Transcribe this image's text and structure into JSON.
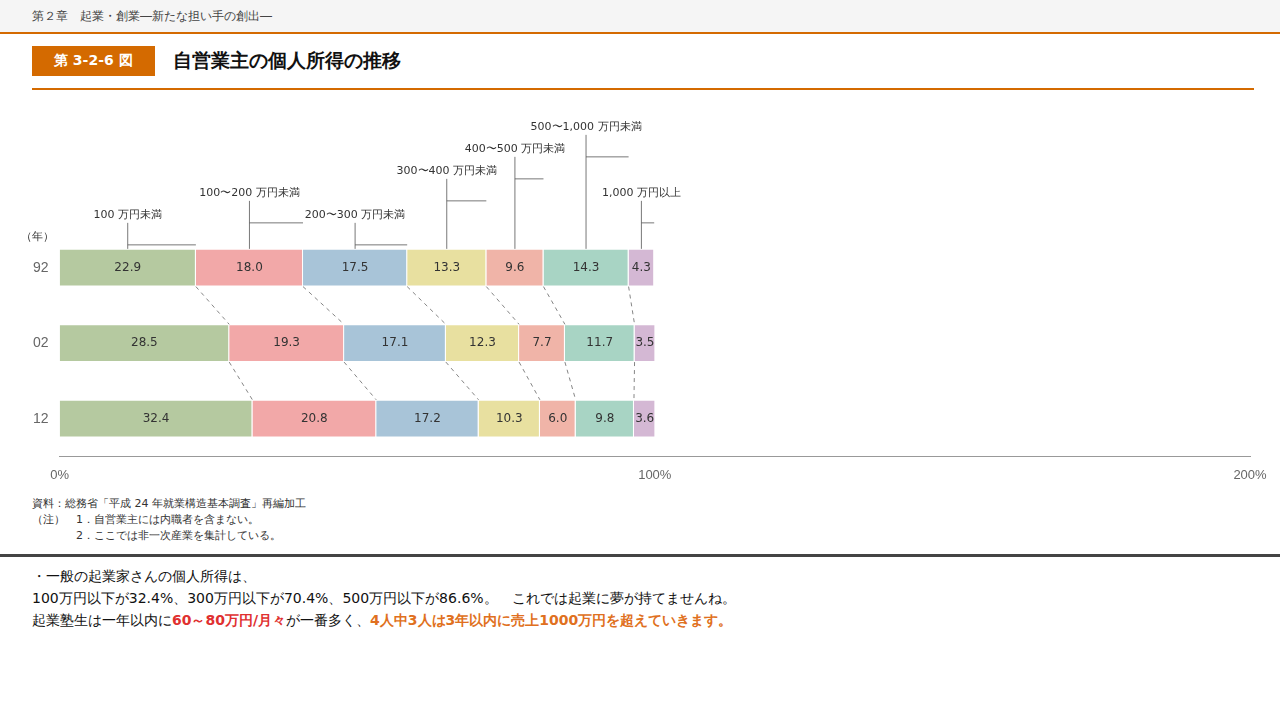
{
  "chart_data": {
    "type": "bar",
    "orientation": "horizontal",
    "stacked": true,
    "data_labels": true,
    "grid": false,
    "header": {
      "text": "第２章　起業・創業―新たな担い手の創出―",
      "color": "#d46a00"
    },
    "figure_label": {
      "text": "第 3-2-6 図",
      "color": "#d46a00"
    },
    "title": "自営業主の個人所得の推移",
    "ylabel": "（年）",
    "categories": [
      "92",
      "02",
      "12"
    ],
    "series": [
      {
        "name": "100 万円未満",
        "color": "#b5c9a0",
        "values": [
          22.9,
          28.5,
          32.4
        ],
        "value_labels": [
          "22.9",
          "28.5",
          "32.4"
        ]
      },
      {
        "name": "100〜200 万円未満",
        "color": "#f2a8a8",
        "values": [
          18.0,
          19.3,
          20.8
        ],
        "value_labels": [
          "18.0",
          "19.3",
          "20.8"
        ]
      },
      {
        "name": "200〜300 万円未満",
        "color": "#a8c4d8",
        "values": [
          17.5,
          17.1,
          17.2
        ],
        "value_labels": [
          "17.5",
          "17.1",
          "17.2"
        ]
      },
      {
        "name": "300〜400 万円未満",
        "color": "#e8e0a0",
        "values": [
          13.3,
          12.3,
          10.3
        ],
        "value_labels": [
          "13.3",
          "12.3",
          "10.3"
        ]
      },
      {
        "name": "400〜500 万円未満",
        "color": "#f0b4a8",
        "values": [
          9.6,
          7.7,
          6.0
        ],
        "value_labels": [
          "9.6",
          "7.7",
          "6.0"
        ]
      },
      {
        "name": "500〜1,000 万円未満",
        "color": "#a8d4c4",
        "values": [
          14.3,
          11.7,
          9.8
        ],
        "value_labels": [
          "14.3",
          "11.7",
          "9.8"
        ]
      },
      {
        "name": "1,000 万円以上",
        "color": "#d4b8d4",
        "values": [
          4.3,
          3.5,
          3.6
        ],
        "value_labels": [
          "4.3",
          "3.5",
          "3.6"
        ]
      }
    ],
    "xlim": [
      0,
      200
    ],
    "xticks": [
      {
        "value": 0,
        "label": "0%"
      },
      {
        "value": 100,
        "label": "100%"
      },
      {
        "value": 200,
        "label": "200%"
      }
    ],
    "source": "資料：総務省「平成 24 年就業構造基本調査」再編加工",
    "notes": [
      "（注）　1．自営業主には内職者を含まない。",
      "　　　　2．ここでは非一次産業を集計している。"
    ],
    "footer_lines": [
      [
        {
          "text": "・一般の起業家さんの個人所得は、"
        }
      ],
      [
        {
          "text": "100万円以下が32.4%、300万円以下が70.4%、500万円以下が86.6%。　これでは起業に夢が持てませんね。"
        }
      ],
      [
        {
          "text": "起業塾生は一年以内に"
        },
        {
          "text": "60～80万円/月々",
          "color": "#e03030"
        },
        {
          "text": "が一番多く、"
        },
        {
          "text": "4人中3人は3年以内に売上1000万円を超えていきます。",
          "color": "#e07020"
        }
      ]
    ]
  }
}
